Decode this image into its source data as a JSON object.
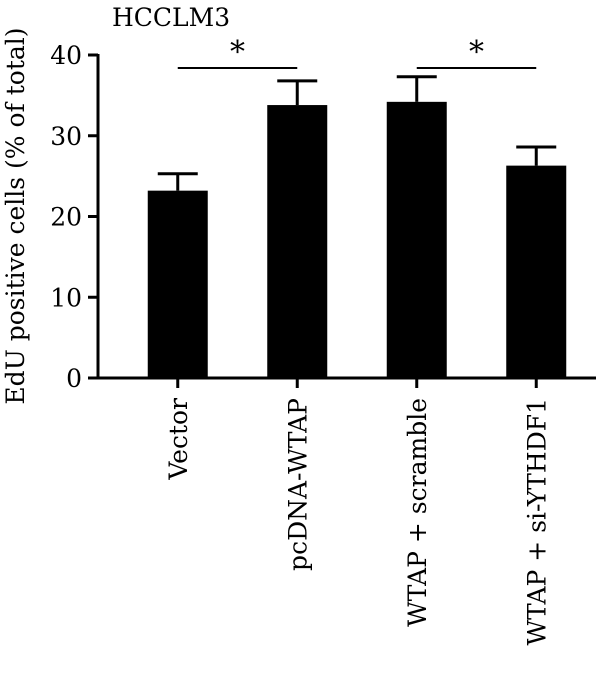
{
  "chart_data": {
    "type": "bar",
    "title": "HCCLM3",
    "xlabel": "",
    "ylabel": "EdU positive cells (% of total)",
    "ylim": [
      0,
      40
    ],
    "yticks": [
      0,
      10,
      20,
      30,
      40
    ],
    "grid": false,
    "categories": [
      "Vector",
      "pcDNA-WTAP",
      "WTAP + scramble",
      "WTAP + si-YTHDF1"
    ],
    "values": [
      23.2,
      33.8,
      34.2,
      26.3
    ],
    "errors": [
      2.1,
      3.0,
      3.1,
      2.3
    ],
    "bar_color": "#000000",
    "significance": [
      {
        "from": 0,
        "to": 1,
        "label": "*"
      },
      {
        "from": 2,
        "to": 3,
        "label": "*"
      }
    ]
  }
}
